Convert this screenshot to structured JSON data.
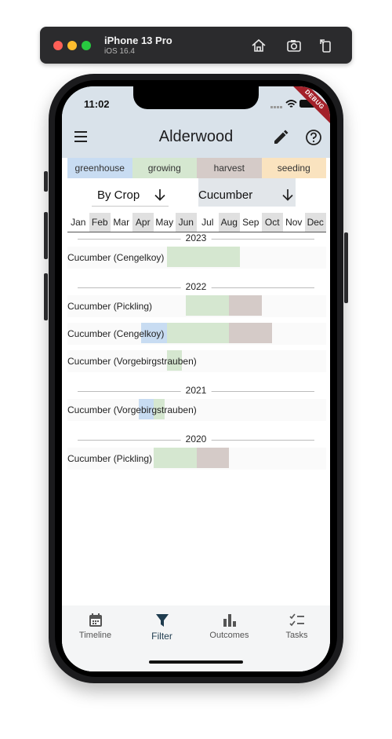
{
  "simulator": {
    "device": "iPhone 13 Pro",
    "os": "iOS 16.4",
    "icons": [
      "home-icon",
      "screenshot-icon",
      "rotate-icon"
    ]
  },
  "status_bar": {
    "time": "11:02",
    "debug_banner": "DEBUG"
  },
  "appbar": {
    "title": "Alderwood",
    "icons": [
      "menu-icon",
      "edit-icon",
      "help-icon"
    ]
  },
  "legend": [
    {
      "label": "greenhouse",
      "color": "#c8dcf2"
    },
    {
      "label": "growing",
      "color": "#d5e7d0"
    },
    {
      "label": "harvest",
      "color": "#d5cbc8"
    },
    {
      "label": "seeding",
      "color": "#fae3bf"
    }
  ],
  "controls": {
    "sort_label": "By Crop",
    "crop_select_value": "Cucumber"
  },
  "months": [
    "Jan",
    "Feb",
    "Mar",
    "Apr",
    "May",
    "Jun",
    "Jul",
    "Aug",
    "Sep",
    "Oct",
    "Nov",
    "Dec"
  ],
  "groups": [
    {
      "year": "2023",
      "crops": [
        {
          "name": "Cucumber (Cengelkoy)",
          "segments": [
            {
              "phase": "growing",
              "from": 4.6,
              "to": 8.0
            }
          ]
        }
      ]
    },
    {
      "year": "2022",
      "crops": [
        {
          "name": "Cucumber (Pickling)",
          "segments": [
            {
              "phase": "growing",
              "from": 5.5,
              "to": 7.5
            },
            {
              "phase": "harvest",
              "from": 7.5,
              "to": 9.0
            }
          ]
        },
        {
          "name": "Cucumber (Cengelkoy)",
          "segments": [
            {
              "phase": "greenhouse",
              "from": 3.4,
              "to": 4.6
            },
            {
              "phase": "growing",
              "from": 4.6,
              "to": 7.5
            },
            {
              "phase": "harvest",
              "from": 7.5,
              "to": 9.5
            }
          ]
        },
        {
          "name": "Cucumber (Vorgebirgstrauben)",
          "segments": [
            {
              "phase": "growing",
              "from": 4.6,
              "to": 5.3
            }
          ]
        }
      ]
    },
    {
      "year": "2021",
      "crops": [
        {
          "name": "Cucumber (Vorgebirgstrauben)",
          "segments": [
            {
              "phase": "greenhouse",
              "from": 3.3,
              "to": 4.0
            },
            {
              "phase": "growing",
              "from": 4.0,
              "to": 4.5
            }
          ]
        }
      ]
    },
    {
      "year": "2020",
      "crops": [
        {
          "name": "Cucumber (Pickling)",
          "segments": [
            {
              "phase": "growing",
              "from": 4.0,
              "to": 6.0
            },
            {
              "phase": "harvest",
              "from": 6.0,
              "to": 7.5
            }
          ]
        }
      ]
    }
  ],
  "nav": [
    {
      "label": "Timeline",
      "icon": "calendar-icon"
    },
    {
      "label": "Filter",
      "icon": "filter-icon",
      "active": true
    },
    {
      "label": "Outcomes",
      "icon": "bar-chart-icon"
    },
    {
      "label": "Tasks",
      "icon": "checklist-icon"
    }
  ]
}
